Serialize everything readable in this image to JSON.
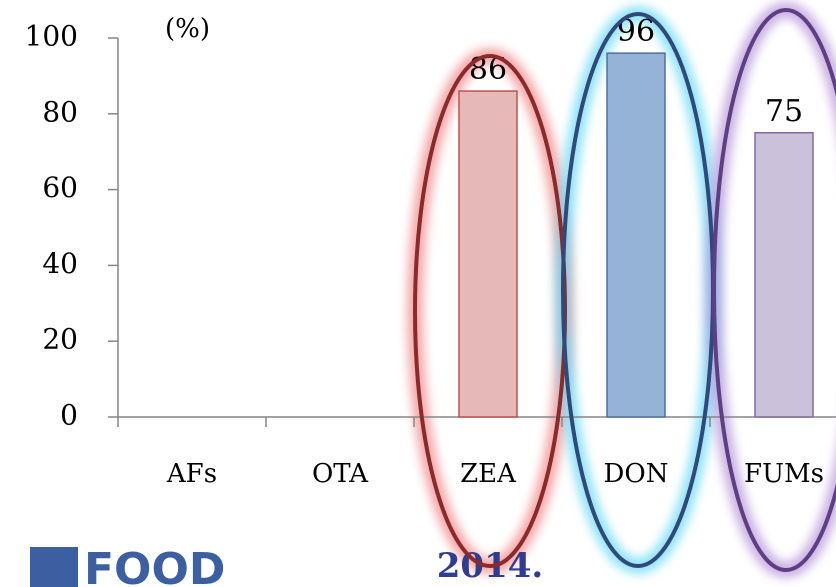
{
  "chart_data": {
    "type": "bar",
    "categories": [
      "AFs",
      "OTA",
      "ZEA",
      "DON",
      "FUMs"
    ],
    "values": [
      null,
      null,
      86,
      96,
      75
    ],
    "colors": [
      "#e6b9b8",
      "#e6b9b8",
      "#e6b9b8",
      "#95b3d7",
      "#ccc1da"
    ],
    "ylim": [
      0,
      100
    ],
    "yticks": [
      0,
      20,
      40,
      60,
      80,
      100
    ],
    "annotations": [
      "(%)",
      "2014."
    ],
    "logo": "FOOD"
  }
}
